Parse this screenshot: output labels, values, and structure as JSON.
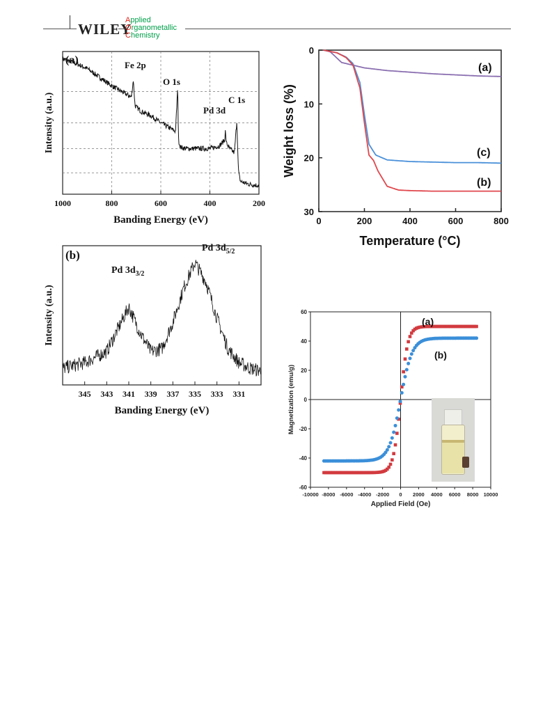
{
  "header": {
    "publisher": "WILEY",
    "journal_line1": "Applied",
    "journal_line2": "Organometallic",
    "journal_line3": "Chemistry",
    "journal_initials": [
      "A",
      "O",
      "C"
    ]
  },
  "colors": {
    "red_series": "#e0474c",
    "blue_series": "#4a90d9",
    "purple_series": "#8a6fb0",
    "red_markers": "#d23a3f",
    "blue_markers": "#3b8fd9",
    "journal_green": "#00a04a",
    "journal_red": "#e2231a"
  },
  "chart_data": [
    {
      "panel": "(a)",
      "type": "line",
      "title": "",
      "xlabel": "Banding Energy (eV)",
      "ylabel": "Intensity (a.u.)",
      "xlim": [
        1000,
        200
      ],
      "x_ticks": [
        "1000",
        "800",
        "600",
        "400",
        "200"
      ],
      "grid": true,
      "annotations": [
        "Fe 2p",
        "O 1s",
        "Pd 3d",
        "C 1s"
      ],
      "series": [
        {
          "x": [
            1000,
            950,
            900,
            850,
            800,
            760,
            720,
            712,
            705,
            680,
            640,
            600,
            560,
            540,
            531,
            528,
            520,
            500,
            450,
            400,
            360,
            340,
            337,
            333,
            320,
            300,
            290,
            285,
            282,
            275,
            260,
            240,
            220,
            200
          ],
          "y": [
            0.95,
            0.92,
            0.88,
            0.82,
            0.76,
            0.72,
            0.68,
            0.8,
            0.62,
            0.58,
            0.55,
            0.5,
            0.46,
            0.44,
            0.75,
            0.38,
            0.33,
            0.32,
            0.32,
            0.32,
            0.34,
            0.38,
            0.44,
            0.36,
            0.32,
            0.29,
            0.52,
            0.22,
            0.14,
            0.09,
            0.08,
            0.07,
            0.065,
            0.06
          ]
        }
      ]
    },
    {
      "panel": "(b)",
      "type": "line",
      "title": "",
      "xlabel": "Banding Energy (eV)",
      "ylabel": "Intensity (a.u.)",
      "xlim": [
        347,
        329
      ],
      "x_ticks": [
        "345",
        "343",
        "341",
        "339",
        "337",
        "335",
        "333",
        "331"
      ],
      "annotations": [
        "Pd 3d3/2",
        "Pd 3d5/2"
      ],
      "series": [
        {
          "x": [
            347,
            345,
            343,
            342,
            341,
            340,
            339,
            338,
            337,
            336,
            335,
            334,
            333,
            332,
            331,
            330,
            329
          ],
          "y": [
            0.12,
            0.16,
            0.24,
            0.4,
            0.56,
            0.38,
            0.24,
            0.26,
            0.45,
            0.7,
            0.88,
            0.74,
            0.48,
            0.26,
            0.16,
            0.12,
            0.1
          ]
        }
      ]
    },
    {
      "panel": "TGA",
      "type": "line",
      "title": "",
      "xlabel": "Temperature (°C)",
      "ylabel": "Weight loss (%)",
      "xlim": [
        0,
        800
      ],
      "ylim": [
        0,
        30
      ],
      "y_inverted": true,
      "x_ticks": [
        "0",
        "200",
        "400",
        "600",
        "800"
      ],
      "y_ticks": [
        "0",
        "10",
        "20",
        "30"
      ],
      "series": [
        {
          "name": "(a)",
          "color": "#8a6fb0",
          "x": [
            20,
            50,
            80,
            100,
            150,
            200,
            300,
            400,
            500,
            600,
            700,
            800
          ],
          "y": [
            0,
            0.3,
            1.5,
            2.3,
            2.8,
            3.3,
            3.8,
            4.1,
            4.4,
            4.6,
            4.8,
            4.9
          ]
        },
        {
          "name": "(c)",
          "color": "#4a90d9",
          "x": [
            20,
            80,
            120,
            150,
            180,
            200,
            220,
            250,
            300,
            400,
            500,
            600,
            700,
            800
          ],
          "y": [
            0,
            0.5,
            1.3,
            2.5,
            6,
            12,
            17.5,
            19.5,
            20.4,
            20.7,
            20.8,
            20.9,
            20.9,
            21
          ]
        },
        {
          "name": "(b)",
          "color": "#e0474c",
          "x": [
            20,
            80,
            120,
            150,
            180,
            200,
            220,
            240,
            260,
            300,
            350,
            400,
            500,
            600,
            700,
            800
          ],
          "y": [
            0,
            0.5,
            1.4,
            2.8,
            7,
            13.5,
            19.5,
            20.5,
            22.5,
            25.3,
            26.0,
            26.1,
            26.2,
            26.2,
            26.2,
            26.2
          ]
        }
      ]
    },
    {
      "panel": "VSM",
      "type": "scatter",
      "title": "",
      "xlabel": "Applied Field (Oe)",
      "ylabel": "Magnetization (emu/g)",
      "xlim": [
        -10000,
        10000
      ],
      "ylim": [
        -60,
        60
      ],
      "x_ticks": [
        "-10000",
        "-8000",
        "-6000",
        "-4000",
        "-2000",
        "0",
        "2000",
        "4000",
        "6000",
        "8000",
        "10000"
      ],
      "y_ticks": [
        "60",
        "40",
        "20",
        "0",
        "-20",
        "-40",
        "-60"
      ],
      "series": [
        {
          "name": "(a)",
          "color": "#d23a3f",
          "marker": "square",
          "Ms": 50,
          "h0": 500
        },
        {
          "name": "(b)",
          "color": "#3b8fd9",
          "marker": "circle",
          "Ms": 42,
          "h0": 800
        }
      ]
    }
  ]
}
